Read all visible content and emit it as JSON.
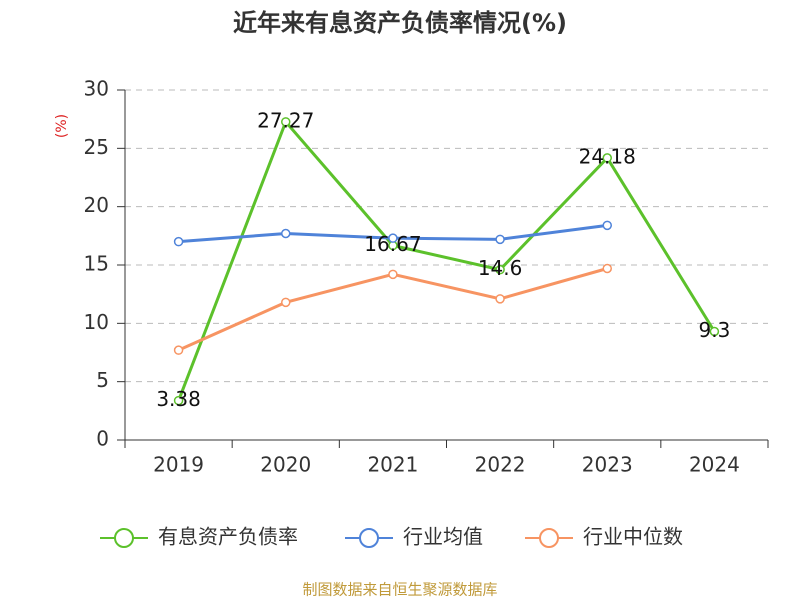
{
  "chart_data": {
    "type": "line",
    "title": "近年来有息资产负债率情况(%)",
    "y_label": "(%)",
    "source": "制图数据来自恒生聚源数据库",
    "categories": [
      "2019",
      "2020",
      "2021",
      "2022",
      "2023",
      "2024"
    ],
    "series": [
      {
        "name": "有息资产负债率",
        "color": "#5cc12b",
        "values": [
          3.38,
          27.27,
          16.67,
          14.6,
          24.18,
          9.3
        ]
      },
      {
        "name": "行业均值",
        "color": "#4f83d9",
        "values": [
          17.0,
          17.7,
          17.3,
          17.2,
          18.4,
          null
        ]
      },
      {
        "name": "行业中位数",
        "color": "#f79462",
        "values": [
          7.7,
          11.8,
          14.2,
          12.1,
          14.7,
          null
        ]
      }
    ],
    "ylim": [
      0,
      30
    ],
    "yticks": [
      0,
      5,
      10,
      15,
      20,
      25,
      30
    ],
    "grid": true,
    "legend": "bottom"
  }
}
